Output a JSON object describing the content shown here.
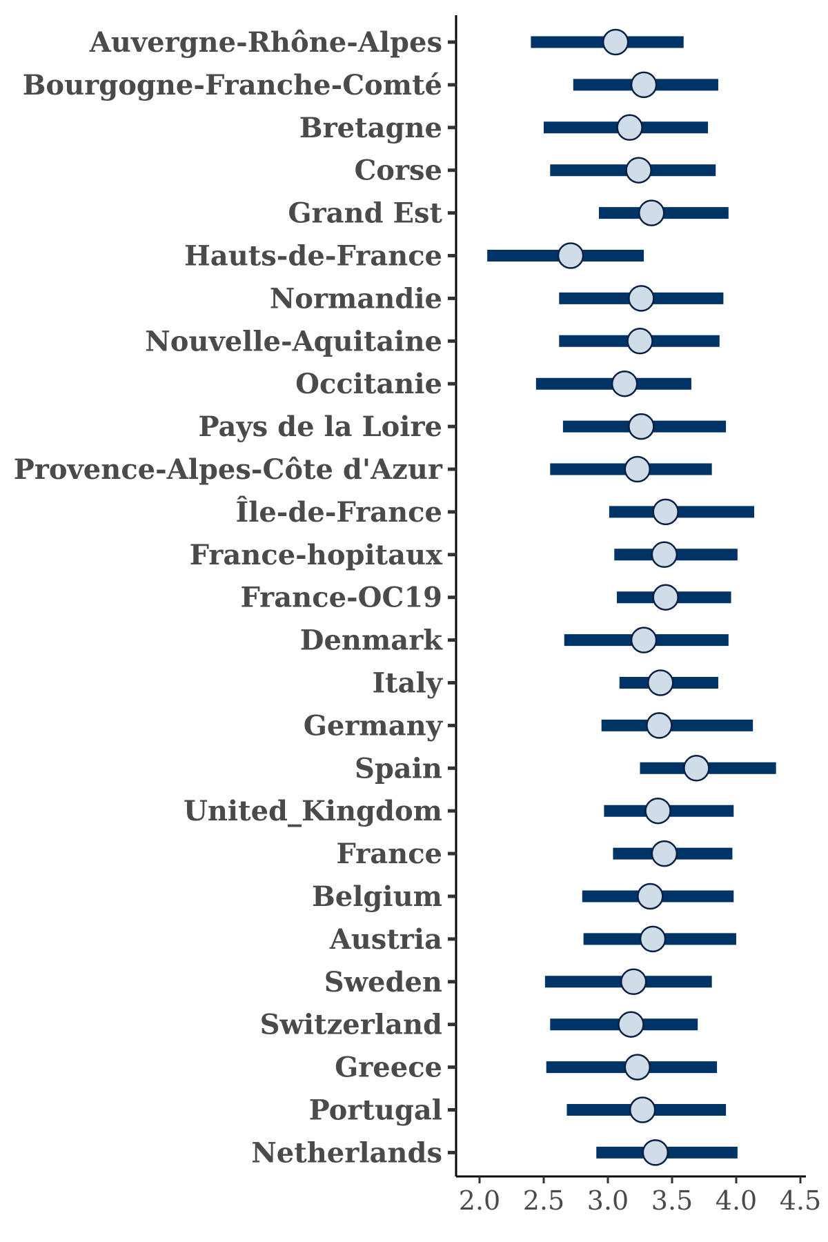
{
  "chart_data": {
    "type": "forest",
    "categories": [
      "Auvergne-Rhône-Alpes",
      "Bourgogne-Franche-Comté",
      "Bretagne",
      "Corse",
      "Grand Est",
      "Hauts-de-France",
      "Normandie",
      "Nouvelle-Aquitaine",
      "Occitanie",
      "Pays de la Loire",
      "Provence-Alpes-Côte d'Azur",
      "Île-de-France",
      "France-hopitaux",
      "France-OC19",
      "Denmark",
      "Italy",
      "Germany",
      "Spain",
      "United_Kingdom",
      "France",
      "Belgium",
      "Austria",
      "Sweden",
      "Switzerland",
      "Greece",
      "Portugal",
      "Netherlands"
    ],
    "estimates": [
      3.06,
      3.28,
      3.17,
      3.24,
      3.34,
      2.71,
      3.26,
      3.25,
      3.13,
      3.26,
      3.23,
      3.45,
      3.44,
      3.45,
      3.28,
      3.41,
      3.4,
      3.69,
      3.39,
      3.44,
      3.33,
      3.35,
      3.2,
      3.18,
      3.23,
      3.27,
      3.37
    ],
    "lower": [
      2.4,
      2.73,
      2.5,
      2.55,
      2.93,
      2.06,
      2.62,
      2.62,
      2.44,
      2.65,
      2.55,
      3.01,
      3.05,
      3.07,
      2.66,
      3.09,
      2.95,
      3.25,
      2.97,
      3.04,
      2.8,
      2.81,
      2.51,
      2.55,
      2.52,
      2.68,
      2.91
    ],
    "upper": [
      3.59,
      3.86,
      3.78,
      3.84,
      3.94,
      3.28,
      3.9,
      3.87,
      3.65,
      3.92,
      3.81,
      4.14,
      4.01,
      3.96,
      3.94,
      3.86,
      4.13,
      4.31,
      3.98,
      3.97,
      3.98,
      4.0,
      3.81,
      3.7,
      3.85,
      3.92,
      4.01
    ],
    "x_ticks": [
      "2.0",
      "2.5",
      "3.0",
      "3.5",
      "4.0",
      "4.5"
    ],
    "xlim": [
      1.8,
      4.55
    ],
    "xlabel": "",
    "ylabel": "",
    "title": "",
    "grid": false,
    "colors": {
      "interval": "#003366",
      "marker_fill": "#cfdde9",
      "marker_edge": "#0a1f44",
      "axis": "#000000",
      "label_text": "#4a4a4a",
      "tick": "#333333"
    }
  }
}
